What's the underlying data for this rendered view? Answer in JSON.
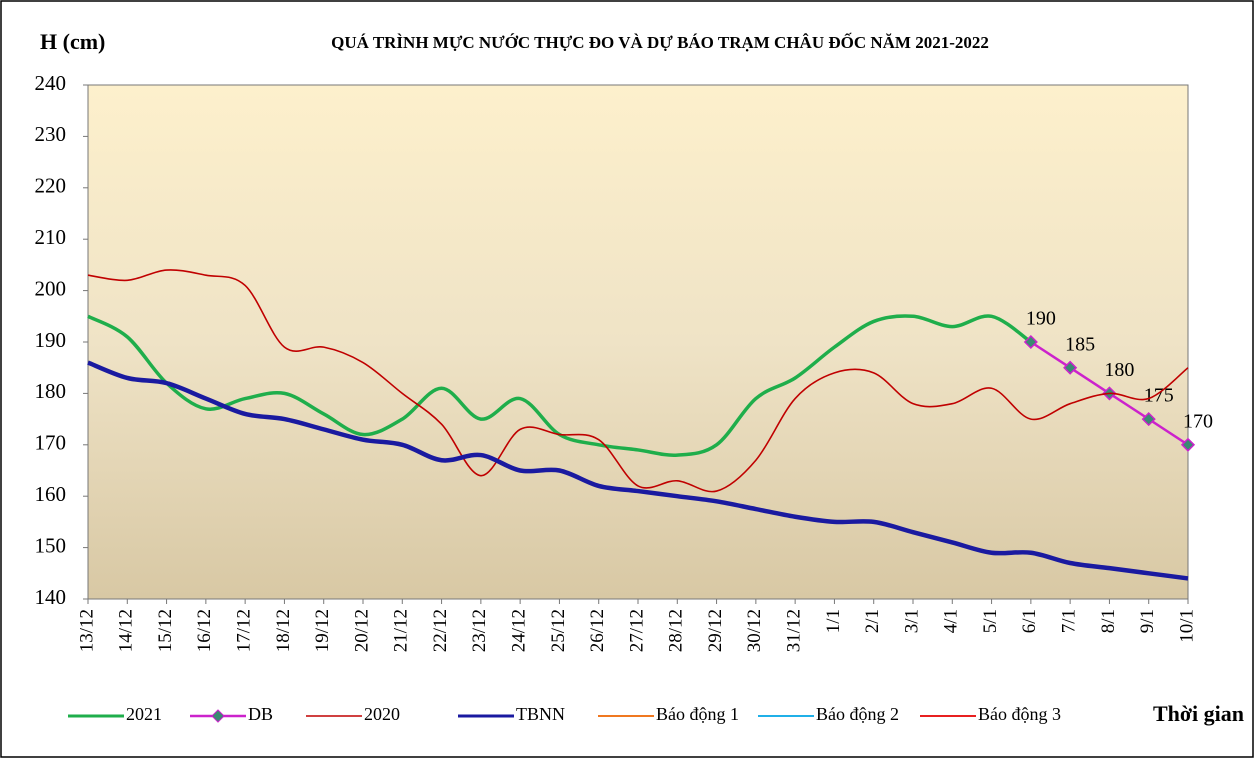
{
  "chart_data": {
    "type": "line",
    "title": "QUÁ TRÌNH MỰC NƯỚC THỰC ĐO VÀ DỰ BÁO TRẠM CHÂU ĐỐC NĂM  2021-2022",
    "y_label": "H (cm)",
    "x_label": "Thời gian",
    "categories": [
      "13/12",
      "14/12",
      "15/12",
      "16/12",
      "17/12",
      "18/12",
      "19/12",
      "20/12",
      "21/12",
      "22/12",
      "23/12",
      "24/12",
      "25/12",
      "26/12",
      "27/12",
      "28/12",
      "29/12",
      "30/12",
      "31/12",
      "1/1",
      "2/1",
      "3/1",
      "4/1",
      "5/1",
      "6/1",
      "7/1",
      "8/1",
      "9/1",
      "10/1"
    ],
    "ylim": [
      140,
      240
    ],
    "yticks": [
      140,
      150,
      160,
      170,
      180,
      190,
      200,
      210,
      220,
      230,
      240
    ],
    "series": [
      {
        "name": "2021",
        "color": "#1fae4b",
        "values": [
          195,
          191,
          182,
          177,
          179,
          180,
          176,
          172,
          175,
          181,
          175,
          179,
          172,
          170,
          169,
          168,
          170,
          179,
          183,
          189,
          194,
          195,
          193,
          195,
          190,
          null,
          null,
          null,
          null
        ]
      },
      {
        "name": "DB",
        "color": "#cc22cc",
        "marker_color": "#3a8a72",
        "values": [
          null,
          null,
          null,
          null,
          null,
          null,
          null,
          null,
          null,
          null,
          null,
          null,
          null,
          null,
          null,
          null,
          null,
          null,
          null,
          null,
          null,
          null,
          null,
          null,
          190,
          185,
          180,
          175,
          170
        ]
      },
      {
        "name": "2020",
        "color": "#c00000",
        "values": [
          203,
          202,
          204,
          203,
          201,
          189,
          189,
          186,
          180,
          174,
          164,
          173,
          172,
          171,
          162,
          163,
          161,
          167,
          179,
          184,
          184,
          178,
          178,
          181,
          175,
          178,
          180,
          179,
          185
        ]
      },
      {
        "name": "TBNN",
        "color": "#1a1aa0",
        "values": [
          186,
          183,
          182,
          179,
          176,
          175,
          173,
          171,
          170,
          167,
          168,
          165,
          165,
          162,
          161,
          160,
          159,
          157.5,
          156,
          155,
          155,
          153,
          151,
          149,
          149,
          147,
          146,
          145,
          144
        ]
      },
      {
        "name": "Báo động 1",
        "color": "#f07820",
        "values": [
          null,
          null,
          null,
          null,
          null,
          null,
          null,
          null,
          null,
          null,
          null,
          null,
          null,
          null,
          null,
          null,
          null,
          null,
          null,
          null,
          null,
          null,
          null,
          null,
          null,
          null,
          null,
          null,
          null
        ]
      },
      {
        "name": "Báo động 2",
        "color": "#20b0e8",
        "values": [
          null,
          null,
          null,
          null,
          null,
          null,
          null,
          null,
          null,
          null,
          null,
          null,
          null,
          null,
          null,
          null,
          null,
          null,
          null,
          null,
          null,
          null,
          null,
          null,
          null,
          null,
          null,
          null,
          null
        ]
      },
      {
        "name": "Báo động 3",
        "color": "#e82020",
        "values": [
          null,
          null,
          null,
          null,
          null,
          null,
          null,
          null,
          null,
          null,
          null,
          null,
          null,
          null,
          null,
          null,
          null,
          null,
          null,
          null,
          null,
          null,
          null,
          null,
          null,
          null,
          null,
          null,
          null
        ]
      }
    ]
  }
}
